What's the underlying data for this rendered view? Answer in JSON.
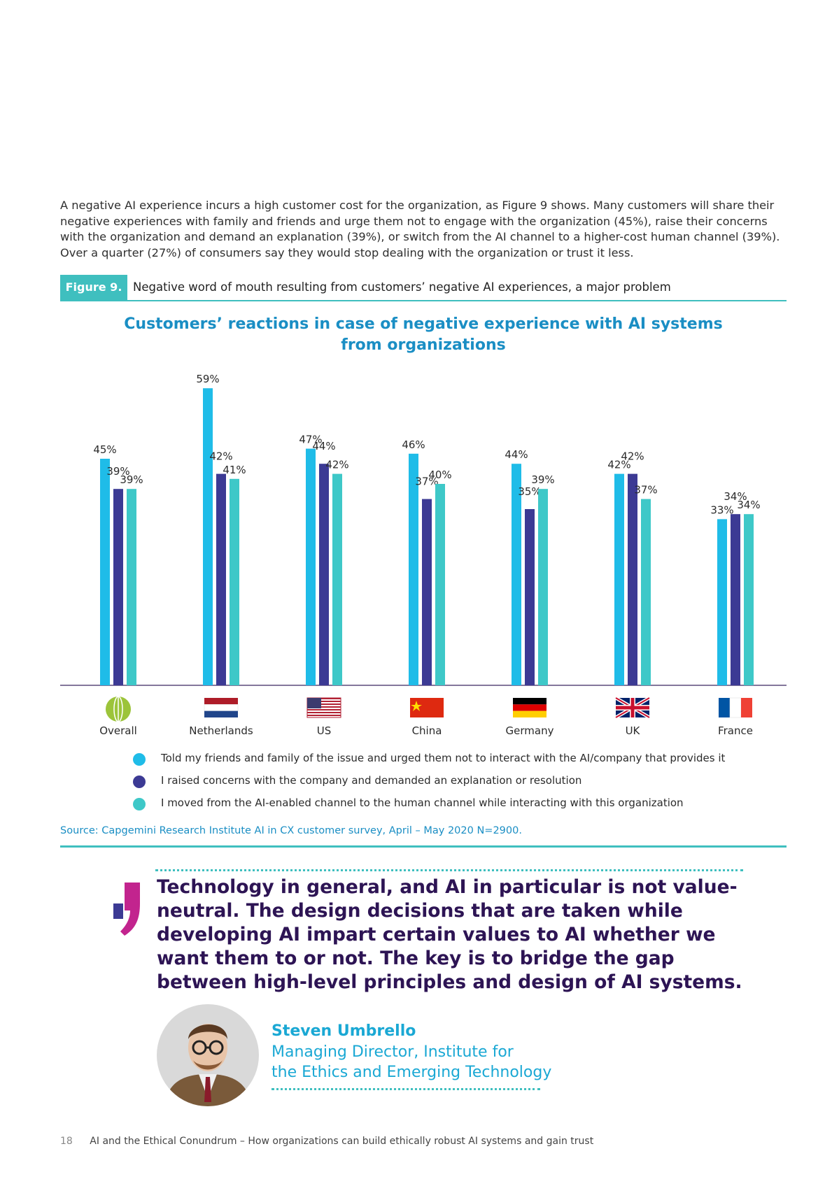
{
  "intro_text": "A negative AI experience incurs a high customer cost for the organization, as Figure 9 shows. Many customers will share their negative experiences with family and friends and urge them not to engage with the organization (45%), raise their concerns with the organization and demand an explanation (39%), or switch from the AI channel to a higher-cost human channel (39%). Over a quarter (27%) of consumers say they would stop dealing with the organization or trust it less.",
  "figure": {
    "tag": "Figure 9.",
    "title": "Negative word of mouth resulting from customers’ negative AI experiences, a major problem"
  },
  "chart_title_line1": "Customers’ reactions in case of negative experience with AI systems",
  "chart_title_line2": "from organizations",
  "chart_data": {
    "type": "bar",
    "title": "Customers’ reactions in case of negative experience with AI systems from organizations",
    "categories": [
      "Overall",
      "Netherlands",
      "US",
      "China",
      "Germany",
      "UK",
      "France"
    ],
    "series": [
      {
        "name": "Told my friends and family of the issue and urged them not to interact with the AI/company that provides it",
        "color": "#1fbce8",
        "values": [
          45,
          59,
          47,
          46,
          44,
          42,
          33
        ]
      },
      {
        "name": "I raised concerns with the company and demanded an explanation or resolution",
        "color": "#3c3a94",
        "values": [
          39,
          42,
          44,
          37,
          35,
          42,
          34
        ]
      },
      {
        "name": "I moved from the AI-enabled channel to the human channel while interacting with this organization",
        "color": "#3ec8c8",
        "values": [
          39,
          41,
          42,
          40,
          39,
          37,
          34
        ]
      }
    ],
    "value_suffix": "%",
    "ylim": [
      0,
      65
    ],
    "xlabel": "",
    "ylabel": "",
    "grid": false,
    "legend": "bottom"
  },
  "category_icons": [
    "globe-icon",
    "flag-netherlands-icon",
    "flag-us-icon",
    "flag-china-icon",
    "flag-germany-icon",
    "flag-uk-icon",
    "flag-france-icon"
  ],
  "source": "Source: Capgemini Research Institute AI in CX customer survey, April – May 2020 N=2900.",
  "quote": "Technology in general, and AI in particular is not value-neutral. The design decisions that are taken while developing AI impart certain values to AI whether we want them to or not. The key is to bridge the gap between high-level principles and design of AI systems.",
  "person": {
    "name": "Steven Umbrello",
    "role_line1": "Managing Director, Institute for",
    "role_line2": "the Ethics and Emerging Technology"
  },
  "footer": {
    "page_number": "18",
    "title": "AI and the Ethical Conundrum – How organizations can build ethically robust AI systems and gain trust"
  }
}
